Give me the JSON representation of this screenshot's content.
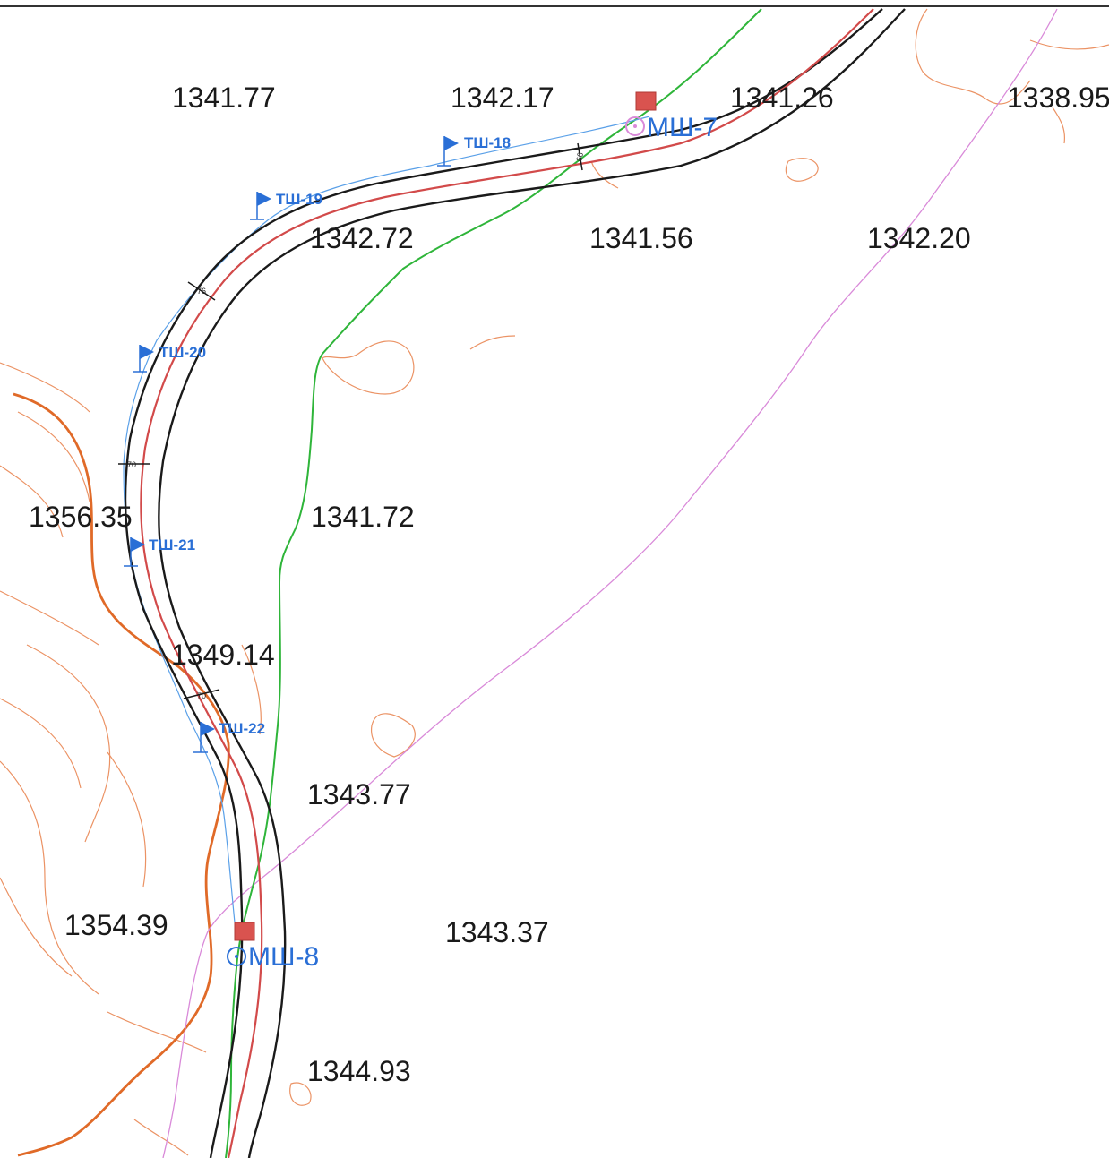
{
  "elevations": [
    {
      "id": "e1",
      "label": "1341.77"
    },
    {
      "id": "e2",
      "label": "1342.17"
    },
    {
      "id": "e3",
      "label": "1341.26"
    },
    {
      "id": "e4",
      "label": "1338.95"
    },
    {
      "id": "e5",
      "label": "1342.72"
    },
    {
      "id": "e6",
      "label": "1341.56"
    },
    {
      "id": "e7",
      "label": "1342.20"
    },
    {
      "id": "e8",
      "label": "1356.35"
    },
    {
      "id": "e9",
      "label": "1341.72"
    },
    {
      "id": "e10",
      "label": "1349.14"
    },
    {
      "id": "e11",
      "label": "1343.77"
    },
    {
      "id": "e12",
      "label": "1354.39"
    },
    {
      "id": "e13",
      "label": "1343.37"
    },
    {
      "id": "e14",
      "label": "1344.93"
    }
  ],
  "markers_t": [
    {
      "id": "t18",
      "label": "ТШ-18"
    },
    {
      "id": "t19",
      "label": "ТШ-19"
    },
    {
      "id": "t20",
      "label": "ТШ-20"
    },
    {
      "id": "t21",
      "label": "ТШ-21"
    },
    {
      "id": "t22",
      "label": "ТШ-22"
    }
  ],
  "markers_m": [
    {
      "id": "m7",
      "label": "МШ-7"
    },
    {
      "id": "m8",
      "label": "МШ-8"
    }
  ],
  "ticks": [
    "66",
    "76",
    "70",
    "70"
  ],
  "colors": {
    "road_edge": "#1a1a1a",
    "road_axis": "#d24a4a",
    "green_line": "#2fb53a",
    "contour": "#e8804a",
    "contour_bold": "#e06a28",
    "pink_line": "#d98ad9",
    "blue_marker": "#2a6fd6",
    "box_fill": "#d9534f"
  }
}
